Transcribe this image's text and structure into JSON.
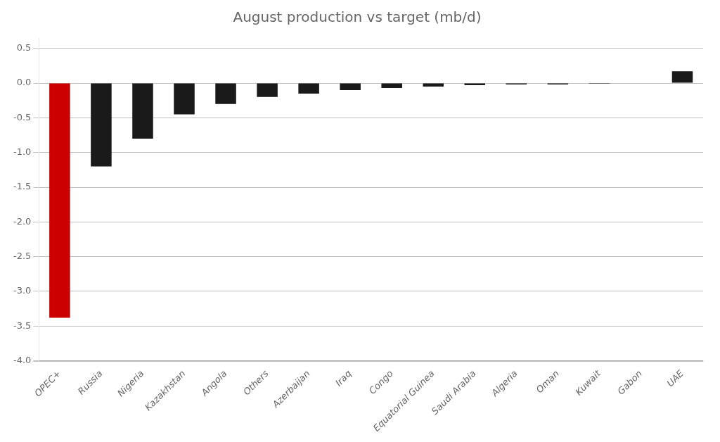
{
  "chart_data": {
    "type": "bar",
    "title": "August production vs target (mb/d)",
    "categories": [
      "OPEC+",
      "Russia",
      "Nigeria",
      "Kazakhstan",
      "Angola",
      "Others",
      "Azerbaijan",
      "Iraq",
      "Congo",
      "Equatorial Guinea",
      "Saudi Arabia",
      "Algeria",
      "Oman",
      "Kuwait",
      "Gabon",
      "UAE"
    ],
    "values": [
      -3.38,
      -1.2,
      -0.8,
      -0.45,
      -0.3,
      -0.2,
      -0.15,
      -0.1,
      -0.07,
      -0.05,
      -0.03,
      -0.02,
      -0.02,
      -0.01,
      -0.005,
      0.17
    ],
    "colors": [
      "#cc0000",
      "#1a1a1a",
      "#1a1a1a",
      "#1a1a1a",
      "#1a1a1a",
      "#1a1a1a",
      "#1a1a1a",
      "#1a1a1a",
      "#1a1a1a",
      "#1a1a1a",
      "#1a1a1a",
      "#1a1a1a",
      "#1a1a1a",
      "#1a1a1a",
      "#1a1a1a",
      "#1a1a1a"
    ],
    "ylim": [
      -4.0,
      0.65
    ],
    "yticks": [
      {
        "value": -4.0,
        "label": "-4.0"
      },
      -3.5,
      {
        "value": -3.0,
        "label": "-3.0"
      },
      -2.5,
      {
        "value": -2.0,
        "label": "-2.0"
      },
      -1.5,
      {
        "value": -1.0,
        "label": "-1.0"
      },
      -0.5,
      {
        "value": 0.0,
        "label": "0.0"
      },
      0.5
    ],
    "grid": true
  }
}
